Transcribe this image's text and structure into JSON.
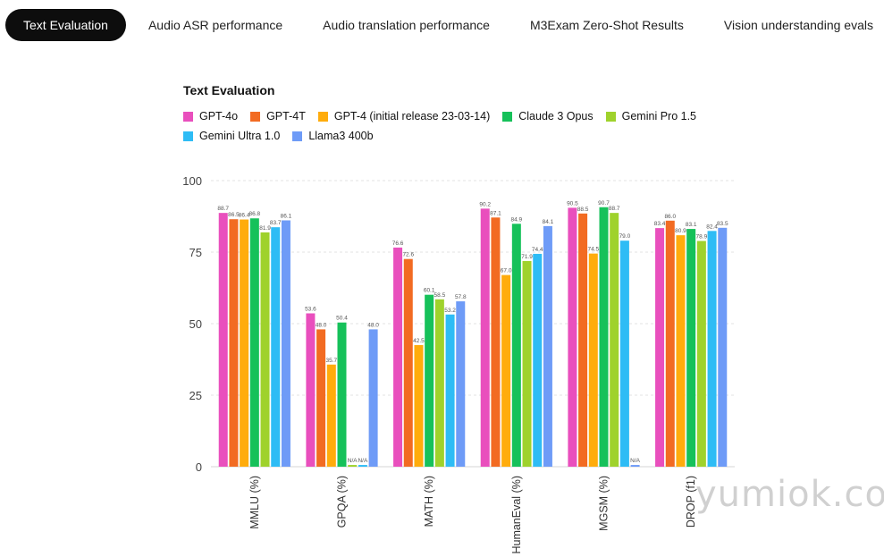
{
  "tabs": [
    {
      "label": "Text Evaluation",
      "active": true
    },
    {
      "label": "Audio ASR performance",
      "active": false
    },
    {
      "label": "Audio translation performance",
      "active": false
    },
    {
      "label": "M3Exam Zero-Shot Results",
      "active": false
    },
    {
      "label": "Vision understanding evals",
      "active": false
    }
  ],
  "watermark": "yumiok.com",
  "chart_data": {
    "type": "bar",
    "title": "Text Evaluation",
    "xlabel": "",
    "ylabel": "",
    "ylim": [
      0,
      100
    ],
    "yticks": [
      0,
      25,
      50,
      75,
      100
    ],
    "grid": true,
    "legend_position": "top-left",
    "categories": [
      "MMLU (%)",
      "GPQA (%)",
      "MATH (%)",
      "HumanEval (%)",
      "MGSM (%)",
      "DROP (f1)"
    ],
    "series": [
      {
        "name": "GPT-4o",
        "color": "#e94fbd",
        "values": [
          88.7,
          53.6,
          76.6,
          90.2,
          90.5,
          83.4
        ],
        "labels": [
          "88.7",
          "53.6",
          "76.6",
          "90.2",
          "90.5",
          "83.4"
        ]
      },
      {
        "name": "GPT-4T",
        "color": "#f26b22",
        "values": [
          86.5,
          48.0,
          72.6,
          87.1,
          88.5,
          86.0
        ],
        "labels": [
          "86.5",
          "48.0",
          "72.6",
          "87.1",
          "88.5",
          "86.0"
        ]
      },
      {
        "name": "GPT-4 (initial release 23-03-14)",
        "color": "#ffac0c",
        "values": [
          86.4,
          35.7,
          42.5,
          67.0,
          74.5,
          80.9
        ],
        "labels": [
          "86.4",
          "35.7",
          "42.5",
          "67.0",
          "74.5",
          "80.9"
        ]
      },
      {
        "name": "Claude 3 Opus",
        "color": "#16c15a",
        "values": [
          86.8,
          50.4,
          60.1,
          84.9,
          90.7,
          83.1
        ],
        "labels": [
          "86.8",
          "50.4",
          "60.1",
          "84.9",
          "90.7",
          "83.1"
        ]
      },
      {
        "name": "Gemini Pro 1.5",
        "color": "#9fd22c",
        "values": [
          81.9,
          null,
          58.5,
          71.9,
          88.7,
          78.9
        ],
        "labels": [
          "81.9",
          "N/A",
          "58.5",
          "71.9",
          "88.7",
          "78.9"
        ]
      },
      {
        "name": "Gemini Ultra 1.0",
        "color": "#2ebcf5",
        "values": [
          83.7,
          null,
          53.2,
          74.4,
          79.0,
          82.4
        ],
        "labels": [
          "83.7",
          "N/A",
          "53.2",
          "74.4",
          "79.0",
          "82.4"
        ]
      },
      {
        "name": "Llama3 400b",
        "color": "#6e9bf7",
        "values": [
          86.1,
          48.0,
          57.8,
          84.1,
          null,
          83.5
        ],
        "labels": [
          "86.1",
          "48.0",
          "57.8",
          "84.1",
          "N/A",
          "83.5"
        ]
      }
    ]
  }
}
